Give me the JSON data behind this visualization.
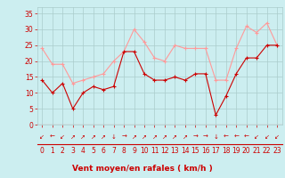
{
  "x": [
    0,
    1,
    2,
    3,
    4,
    5,
    6,
    7,
    8,
    9,
    10,
    11,
    12,
    13,
    14,
    15,
    16,
    17,
    18,
    19,
    20,
    21,
    22,
    23
  ],
  "wind_avg": [
    14,
    10,
    13,
    5,
    10,
    12,
    11,
    12,
    23,
    23,
    16,
    14,
    14,
    15,
    14,
    16,
    16,
    3,
    9,
    16,
    21,
    21,
    25,
    25
  ],
  "wind_gust": [
    24,
    19,
    19,
    13,
    14,
    15,
    16,
    20,
    23,
    30,
    26,
    21,
    20,
    25,
    24,
    24,
    24,
    14,
    14,
    24,
    31,
    29,
    32,
    25
  ],
  "bg_color": "#cceef0",
  "grid_color": "#aacccc",
  "line_avg_color": "#cc0000",
  "line_gust_color": "#ff9999",
  "xlabel": "Vent moyen/en rafales ( km/h )",
  "xlabel_color": "#cc0000",
  "xlabel_fontsize": 6.5,
  "tick_color": "#cc0000",
  "tick_fontsize": 5.5,
  "ylim": [
    0,
    37
  ],
  "yticks": [
    0,
    5,
    10,
    15,
    20,
    25,
    30,
    35
  ],
  "xlim": [
    -0.5,
    23.5
  ],
  "arrow_symbols": [
    "↙",
    "←",
    "↙",
    "↗",
    "↗",
    "↗",
    "↗",
    "↓",
    "→",
    "↗",
    "↗",
    "↗",
    "↗",
    "↗",
    "↗",
    "→",
    "→",
    "↓",
    "←",
    "←",
    "←",
    "↙",
    "↙",
    "↙"
  ]
}
